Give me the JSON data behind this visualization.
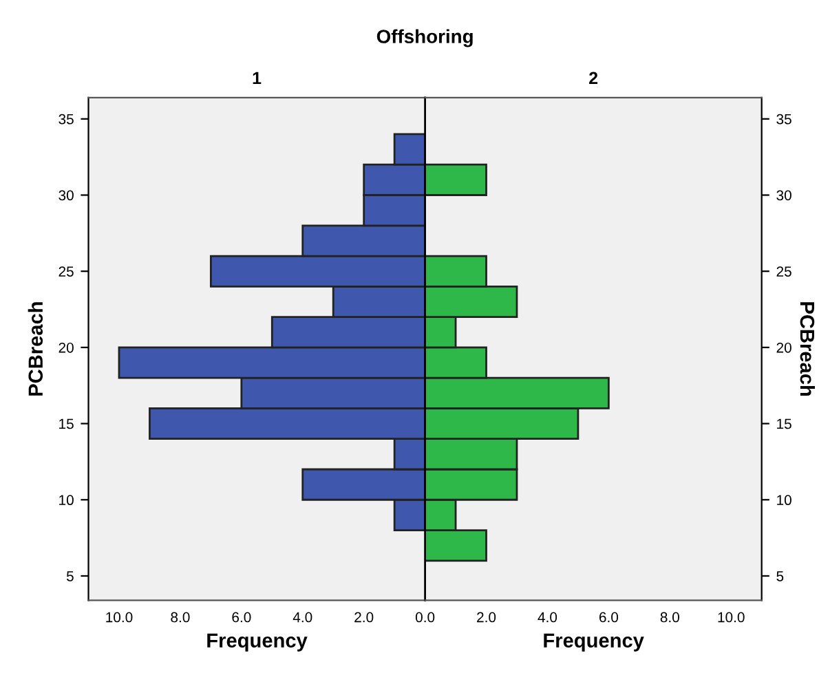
{
  "chart_data": [
    {
      "type": "histogram",
      "orientation": "horizontal",
      "title": "Offshoring",
      "subtitle": "1",
      "xlabel": "Frequency",
      "ylabel": "PCBreach",
      "color": "#3f58ad",
      "bins": [
        8,
        10,
        12,
        14,
        16,
        18,
        20,
        22,
        24,
        26,
        28,
        30,
        32,
        34
      ],
      "values": [
        1,
        4,
        1,
        9,
        6,
        10,
        5,
        3,
        7,
        4,
        2,
        2,
        1
      ],
      "xlim": [
        11,
        0
      ],
      "xticks": [
        {
          "value": 10,
          "label": "10.0"
        },
        {
          "value": 8,
          "label": "8.0"
        },
        {
          "value": 6,
          "label": "6.0"
        },
        {
          "value": 4,
          "label": "4.0"
        },
        {
          "value": 2,
          "label": "2.0"
        },
        {
          "value": 0,
          "label": "0.0"
        }
      ],
      "ylim": [
        3.4,
        36.4
      ],
      "yticks": [
        5,
        10,
        15,
        20,
        25,
        30,
        35
      ],
      "grid": false
    },
    {
      "type": "histogram",
      "orientation": "horizontal",
      "subtitle": "2",
      "xlabel": "Frequency",
      "ylabel": "PCBreach",
      "color": "#2eb84a",
      "bins": [
        6,
        8,
        10,
        12,
        14,
        16,
        18,
        20,
        22,
        24,
        26,
        28,
        30,
        32
      ],
      "values": [
        2,
        1,
        3,
        3,
        5,
        6,
        2,
        1,
        3,
        2,
        0,
        0,
        2
      ],
      "xlim": [
        0,
        11
      ],
      "xticks": [
        {
          "value": 2,
          "label": "2.0"
        },
        {
          "value": 4,
          "label": "4.0"
        },
        {
          "value": 6,
          "label": "6.0"
        },
        {
          "value": 8,
          "label": "8.0"
        },
        {
          "value": 10,
          "label": "10.0"
        }
      ],
      "ylim": [
        3.4,
        36.4
      ],
      "yticks": [
        5,
        10,
        15,
        20,
        25,
        30,
        35
      ],
      "grid": false
    }
  ]
}
